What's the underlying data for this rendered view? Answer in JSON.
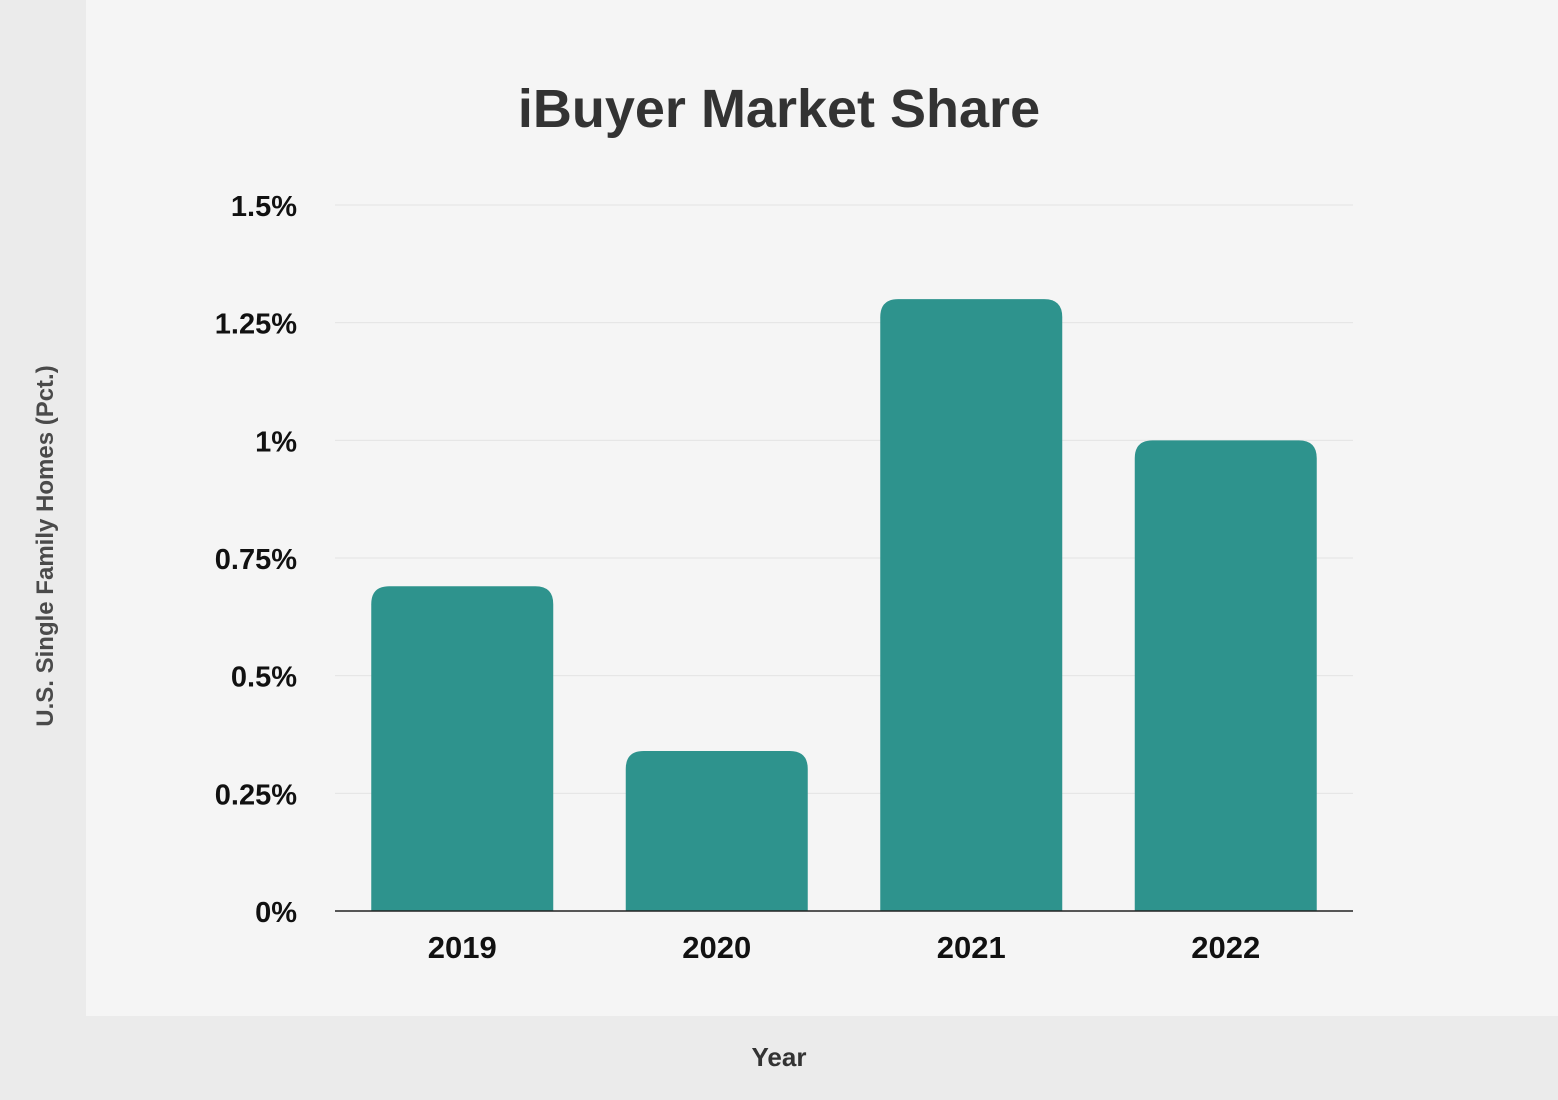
{
  "chart_data": {
    "type": "bar",
    "title": "iBuyer Market Share",
    "xlabel": "Year",
    "ylabel": "U.S. Single Family Homes (Pct.)",
    "categories": [
      "2019",
      "2020",
      "2021",
      "2022"
    ],
    "values": [
      0.69,
      0.34,
      1.3,
      1.0
    ],
    "ylim": [
      0,
      1.5
    ],
    "yticks": [
      0,
      0.25,
      0.5,
      0.75,
      1,
      1.25,
      1.5
    ],
    "ytick_labels": [
      "0%",
      "0.25%",
      "0.5%",
      "0.75%",
      "1%",
      "1.25%",
      "1.5%"
    ],
    "grid": true,
    "legend": "none",
    "bar_color": "#2e938d"
  }
}
